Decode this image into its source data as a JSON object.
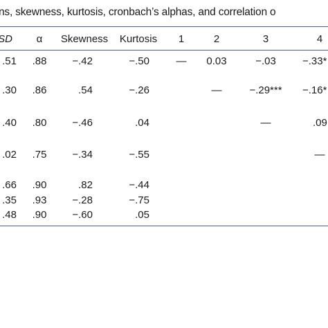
{
  "table": {
    "title": "ns, skewness, kurtosis, cronbach’s alphas, and correlation o",
    "header": [
      "SD",
      "α",
      "Skewness",
      "Kurtosis",
      "1",
      "2",
      "3",
      "4"
    ],
    "rows": [
      {
        "stats": [
          ".51",
          ".88",
          "−.42",
          "−.50"
        ],
        "corr": [
          "—",
          "0.03",
          "−.03",
          "−.33*"
        ]
      },
      {
        "stats": [
          ".30",
          ".86",
          ".54",
          "−.26"
        ],
        "corr": [
          "—",
          "−.29***",
          "−.16*"
        ]
      },
      {
        "stats": [
          ".40",
          ".80",
          "−.46",
          ".04"
        ],
        "corr": [
          "—",
          ".09"
        ]
      },
      {
        "stats": [
          ".02",
          ".75",
          "−.34",
          "−.55"
        ],
        "corr": [
          "—"
        ]
      },
      {
        "stats": [
          ".66",
          ".90",
          ".82",
          "−.44"
        ]
      },
      {
        "stats": [
          ".35",
          ".93",
          "−.28",
          "−.75"
        ]
      },
      {
        "stats": [
          ".48",
          ".90",
          "−.60",
          ".05"
        ]
      }
    ]
  }
}
